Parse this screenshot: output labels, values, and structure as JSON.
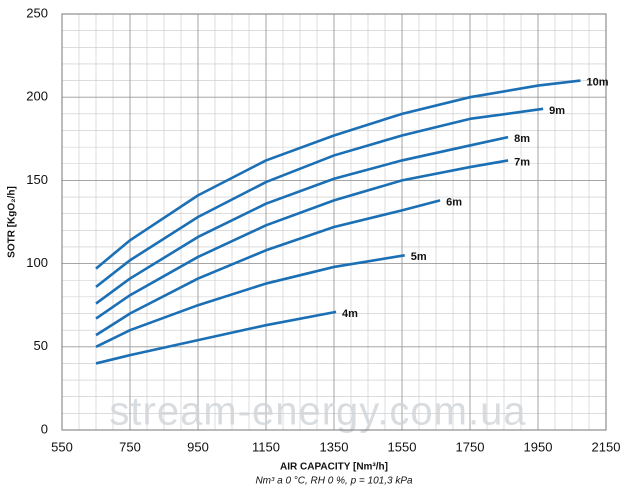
{
  "chart_data": {
    "type": "line",
    "xlabel": "AIR CAPACITY [Nm³/h]",
    "ylabel": "SOTR [KgO₂/h]",
    "note": "Nm³ a 0 °C, RH 0 %, p = 101,3 kPa",
    "watermark": "stream-energy.com.ua",
    "xlim": [
      550,
      2150
    ],
    "xticks": [
      550,
      750,
      950,
      1150,
      1350,
      1550,
      1750,
      1950,
      2150
    ],
    "ylim": [
      0,
      250
    ],
    "yticks": [
      0,
      50,
      100,
      150,
      200,
      250
    ],
    "grid": true,
    "series": [
      {
        "name": "10m",
        "color": "#1a6fb5",
        "x": [
          650,
          750,
          950,
          1150,
          1350,
          1550,
          1750,
          1950,
          2075
        ],
        "values": [
          97,
          114,
          141,
          162,
          177,
          190,
          200,
          207,
          210
        ]
      },
      {
        "name": "9m",
        "color": "#1a6fb5",
        "x": [
          650,
          750,
          950,
          1150,
          1350,
          1550,
          1750,
          1965
        ],
        "values": [
          86,
          102,
          128,
          149,
          165,
          177,
          187,
          193
        ]
      },
      {
        "name": "8m",
        "color": "#1a6fb5",
        "x": [
          650,
          750,
          950,
          1150,
          1350,
          1550,
          1750,
          1862
        ],
        "values": [
          76,
          91,
          116,
          136,
          151,
          162,
          171,
          176
        ]
      },
      {
        "name": "7m",
        "color": "#1a6fb5",
        "x": [
          650,
          750,
          950,
          1150,
          1350,
          1550,
          1750,
          1862
        ],
        "values": [
          67,
          81,
          104,
          123,
          138,
          150,
          158,
          162
        ]
      },
      {
        "name": "6m",
        "color": "#1a6fb5",
        "x": [
          650,
          750,
          950,
          1150,
          1350,
          1550,
          1662
        ],
        "values": [
          57,
          70,
          91,
          108,
          122,
          132,
          138
        ]
      },
      {
        "name": "5m",
        "color": "#1a6fb5",
        "x": [
          650,
          750,
          950,
          1150,
          1350,
          1558
        ],
        "values": [
          50,
          60,
          75,
          88,
          98,
          105
        ]
      },
      {
        "name": "4m",
        "color": "#1a6fb5",
        "x": [
          650,
          750,
          950,
          1150,
          1356
        ],
        "values": [
          40,
          45,
          54,
          63,
          71
        ]
      }
    ]
  }
}
